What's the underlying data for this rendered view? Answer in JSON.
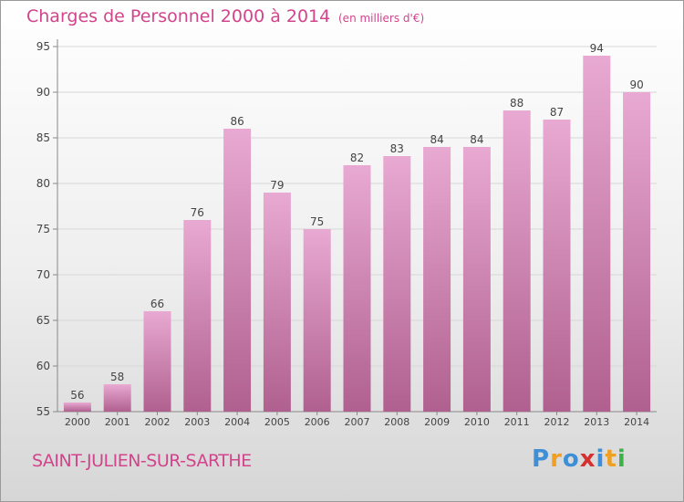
{
  "chart_data": {
    "type": "bar",
    "title": "Charges de Personnel 2000 à 2014",
    "subtitle": "(en milliers d'€)",
    "categories": [
      "2000",
      "2001",
      "2002",
      "2003",
      "2004",
      "2005",
      "2006",
      "2007",
      "2008",
      "2009",
      "2010",
      "2011",
      "2012",
      "2013",
      "2014"
    ],
    "values": [
      56,
      58,
      66,
      76,
      86,
      79,
      75,
      82,
      83,
      84,
      84,
      88,
      87,
      94,
      90
    ],
    "ylim": [
      55,
      95
    ],
    "yticks": [
      55,
      60,
      65,
      70,
      75,
      80,
      85,
      90,
      95
    ],
    "grid": true,
    "colors": {
      "bar_top": "#e8a9d2",
      "bar_bottom": "#b0608f",
      "grid": "#d7d7d7",
      "text": "#444444"
    }
  },
  "place_name": "SAINT-JULIEN-SUR-SARTHE",
  "logo": {
    "text": "Proxiti",
    "letter_colors": [
      "#3f8fd6",
      "#f0a020",
      "#3f8fd6",
      "#d63030",
      "#3f8fd6",
      "#f0a020",
      "#3fb04a"
    ]
  },
  "colors": {
    "accent": "#d2448b"
  }
}
